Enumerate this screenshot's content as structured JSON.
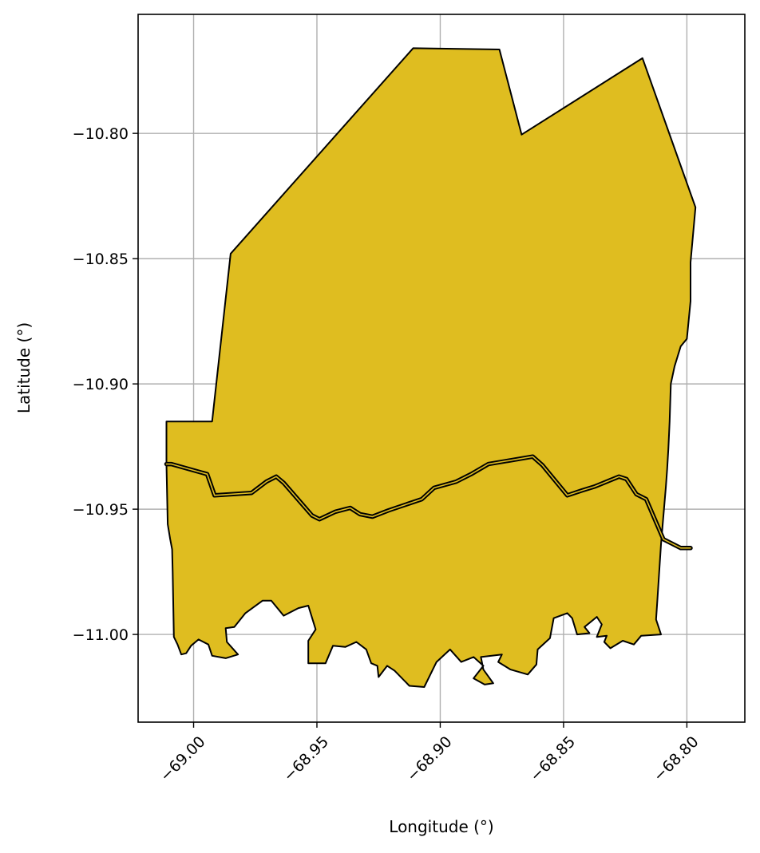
{
  "chart_data": {
    "type": "map",
    "xlabel": "Longitude (°)",
    "ylabel": "Latitude (°)",
    "xlim": [
      -69.0225,
      -68.7765
    ],
    "ylim": [
      -11.035,
      -10.7525
    ],
    "x_ticks": [
      -69.0,
      -68.95,
      -68.9,
      -68.85,
      -68.8
    ],
    "x_tick_labels": [
      "−69.00",
      "−68.95",
      "−68.90",
      "−68.85",
      "−68.80"
    ],
    "y_ticks": [
      -10.8,
      -10.85,
      -10.9,
      -10.95,
      -11.0
    ],
    "y_tick_labels": [
      "−10.80",
      "−10.85",
      "−10.90",
      "−10.95",
      "−11.00"
    ],
    "grid": true,
    "fill_color": "#DFBD20",
    "edge_color": "#000000",
    "regions": [
      {
        "outline": [
          [
            -69.011,
            -10.915
          ],
          [
            -68.9925,
            -10.915
          ],
          [
            -68.985,
            -10.848
          ],
          [
            -68.911,
            -10.766
          ],
          [
            -68.876,
            -10.7665
          ],
          [
            -68.867,
            -10.8005
          ],
          [
            -68.818,
            -10.77
          ],
          [
            -68.7965,
            -10.8295
          ],
          [
            -68.7985,
            -10.8515
          ],
          [
            -68.7985,
            -10.867
          ],
          [
            -68.8,
            -10.882
          ],
          [
            -68.8025,
            -10.885
          ],
          [
            -68.805,
            -10.893
          ],
          [
            -68.8065,
            -10.9
          ],
          [
            -68.807,
            -10.915
          ],
          [
            -68.8075,
            -10.926
          ],
          [
            -68.808,
            -10.934
          ],
          [
            -68.8085,
            -10.941
          ],
          [
            -68.8105,
            -10.964
          ],
          [
            -68.812,
            -10.987
          ],
          [
            -68.8125,
            -10.994
          ],
          [
            -68.8105,
            -11.0
          ],
          [
            -68.8185,
            -11.0005
          ],
          [
            -68.8215,
            -11.004
          ],
          [
            -68.826,
            -11.0025
          ],
          [
            -68.831,
            -11.0055
          ],
          [
            -68.8335,
            -11.003
          ],
          [
            -68.8325,
            -11.0005
          ],
          [
            -68.8365,
            -11.001
          ],
          [
            -68.8345,
            -10.996
          ],
          [
            -68.8365,
            -10.993
          ],
          [
            -68.8415,
            -10.997
          ],
          [
            -68.8395,
            -10.9995
          ],
          [
            -68.8445,
            -11.0
          ],
          [
            -68.8465,
            -10.9935
          ],
          [
            -68.8485,
            -10.9915
          ],
          [
            -68.854,
            -10.9935
          ],
          [
            -68.8555,
            -11.0015
          ],
          [
            -68.8605,
            -11.006
          ],
          [
            -68.861,
            -11.012
          ],
          [
            -68.8645,
            -11.016
          ],
          [
            -68.8715,
            -11.014
          ],
          [
            -68.8765,
            -11.011
          ],
          [
            -68.875,
            -11.008
          ],
          [
            -68.8835,
            -11.009
          ],
          [
            -68.8825,
            -11.014
          ],
          [
            -68.8785,
            -11.0195
          ],
          [
            -68.882,
            -11.02
          ],
          [
            -68.8865,
            -11.0175
          ],
          [
            -68.8825,
            -11.0125
          ],
          [
            -68.8865,
            -11.009
          ],
          [
            -68.8915,
            -11.011
          ],
          [
            -68.896,
            -11.006
          ],
          [
            -68.9015,
            -11.011
          ],
          [
            -68.9065,
            -11.021
          ],
          [
            -68.9125,
            -11.0205
          ],
          [
            -68.9185,
            -11.0145
          ],
          [
            -68.9215,
            -11.0125
          ],
          [
            -68.925,
            -11.017
          ],
          [
            -68.9255,
            -11.0125
          ],
          [
            -68.928,
            -11.0115
          ],
          [
            -68.93,
            -11.006
          ],
          [
            -68.934,
            -11.003
          ],
          [
            -68.9385,
            -11.005
          ],
          [
            -68.9435,
            -11.0045
          ],
          [
            -68.9465,
            -11.0115
          ],
          [
            -68.9535,
            -11.0115
          ],
          [
            -68.9535,
            -11.0025
          ],
          [
            -68.9505,
            -10.998
          ],
          [
            -68.9535,
            -10.9885
          ],
          [
            -68.9575,
            -10.9895
          ],
          [
            -68.9635,
            -10.9925
          ],
          [
            -68.9685,
            -10.9865
          ],
          [
            -68.972,
            -10.9865
          ],
          [
            -68.979,
            -10.9915
          ],
          [
            -68.9835,
            -10.997
          ],
          [
            -68.987,
            -10.9975
          ],
          [
            -68.9865,
            -11.003
          ],
          [
            -68.982,
            -11.008
          ],
          [
            -68.987,
            -11.0095
          ],
          [
            -68.9925,
            -11.0085
          ],
          [
            -68.994,
            -11.004
          ],
          [
            -68.998,
            -11.002
          ],
          [
            -69.001,
            -11.0045
          ],
          [
            -69.003,
            -11.0075
          ],
          [
            -69.005,
            -11.008
          ],
          [
            -69.0065,
            -11.004
          ],
          [
            -69.008,
            -11.001
          ],
          [
            -69.0085,
            -10.975
          ],
          [
            -69.0087,
            -10.966
          ],
          [
            -69.0095,
            -10.962
          ],
          [
            -69.0105,
            -10.956
          ],
          [
            -69.011,
            -10.932
          ]
        ]
      }
    ],
    "boundaries": [
      {
        "points": [
          [
            -69.011,
            -10.932
          ],
          [
            -69.009,
            -10.932
          ],
          [
            -68.9945,
            -10.936
          ],
          [
            -68.9915,
            -10.9445
          ],
          [
            -68.9765,
            -10.9435
          ],
          [
            -68.9705,
            -10.939
          ],
          [
            -68.9665,
            -10.937
          ],
          [
            -68.9635,
            -10.9395
          ],
          [
            -68.952,
            -10.9525
          ],
          [
            -68.949,
            -10.954
          ],
          [
            -68.9425,
            -10.951
          ],
          [
            -68.9365,
            -10.9495
          ],
          [
            -68.9325,
            -10.952
          ],
          [
            -68.9275,
            -10.953
          ],
          [
            -68.921,
            -10.9505
          ],
          [
            -68.9075,
            -10.946
          ],
          [
            -68.9025,
            -10.9415
          ],
          [
            -68.8935,
            -10.939
          ],
          [
            -68.8875,
            -10.936
          ],
          [
            -68.8805,
            -10.932
          ],
          [
            -68.8625,
            -10.929
          ],
          [
            -68.8585,
            -10.9325
          ],
          [
            -68.8485,
            -10.9445
          ],
          [
            -68.8425,
            -10.9425
          ],
          [
            -68.8375,
            -10.941
          ],
          [
            -68.8275,
            -10.937
          ],
          [
            -68.8245,
            -10.938
          ],
          [
            -68.8205,
            -10.944
          ],
          [
            -68.8165,
            -10.946
          ],
          [
            -68.8095,
            -10.962
          ],
          [
            -68.8025,
            -10.9655
          ],
          [
            -68.7985,
            -10.9655
          ]
        ]
      }
    ]
  }
}
